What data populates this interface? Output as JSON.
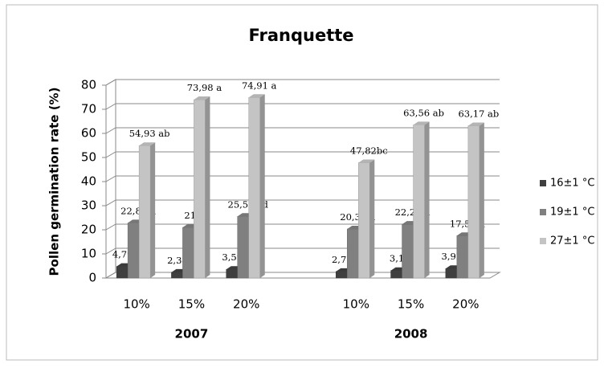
{
  "chart_data": {
    "type": "bar3d",
    "title": "Franquette",
    "y_label": "Pollen germination rate (%)",
    "categories": [
      "10%",
      "15%",
      "20%",
      null,
      "10%",
      "15%",
      "20%"
    ],
    "group_labels": [
      "2007",
      "2008"
    ],
    "series": [
      {
        "name": "16±1 °C",
        "color": "#3f3f3f",
        "values": [
          4.79,
          2.38,
          3.59,
          null,
          2.71,
          3.1,
          3.92
        ],
        "value_labels": [
          "4,79 d",
          "2,38 d",
          "3,59 d",
          null,
          "2,71 d",
          "3,1 d",
          "3,92 d"
        ]
      },
      {
        "name": "19±1 °C",
        "color": "#808080",
        "values": [
          22.86,
          21,
          25.57,
          null,
          20.32,
          22.28,
          17.58
        ],
        "value_labels": [
          "22,86 d",
          "21d",
          "25,57 cd",
          null,
          "20,32 d",
          "22,28 d",
          "17,58 d"
        ]
      },
      {
        "name": "27±1 °C",
        "color": "#c4c4c4",
        "values": [
          54.93,
          73.98,
          74.91,
          null,
          47.82,
          63.56,
          63.17
        ],
        "value_labels": [
          "54,93 ab",
          "73,98 a",
          "74,91 a",
          null,
          "47,82bc",
          "63,56 ab",
          "63,17 ab"
        ]
      }
    ],
    "ylim": [
      0,
      80
    ],
    "yticks": [
      0,
      10,
      20,
      30,
      40,
      50,
      60,
      70,
      80
    ],
    "grid": true,
    "legend": "right"
  }
}
